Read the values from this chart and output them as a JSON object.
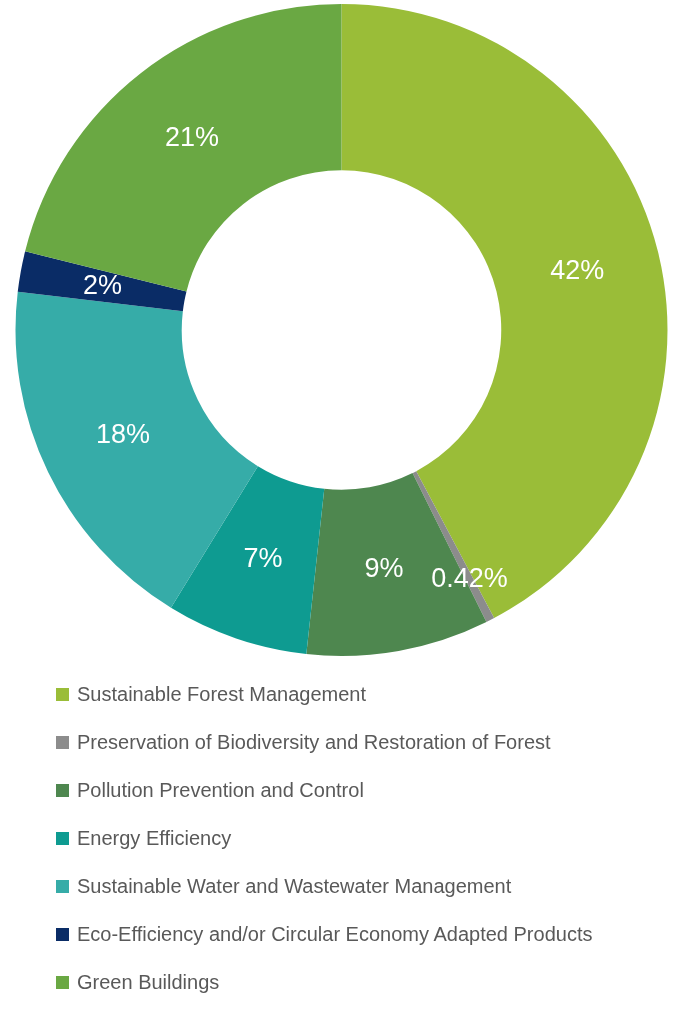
{
  "chart_data": {
    "type": "donut",
    "categories": [
      "Sustainable Forest Management",
      "Preservation of Biodiversity and Restoration of Forest",
      "Pollution Prevention and Control",
      "Energy Efficiency",
      "Sustainable Water and Wastewater Management",
      "Eco-Efficiency and/or Circular Economy Adapted Products",
      "Green Buildings"
    ],
    "values": [
      42,
      0.42,
      9,
      7,
      18,
      2,
      21
    ],
    "colors": [
      "#9abd38",
      "#8c8c8c",
      "#4e874f",
      "#0e9b91",
      "#36aca8",
      "#0a2c66",
      "#6aa843"
    ],
    "value_labels": [
      "42%",
      "0.42%",
      "9%",
      "7%",
      "18%",
      "2%",
      "21%"
    ],
    "legend": "bottom"
  }
}
